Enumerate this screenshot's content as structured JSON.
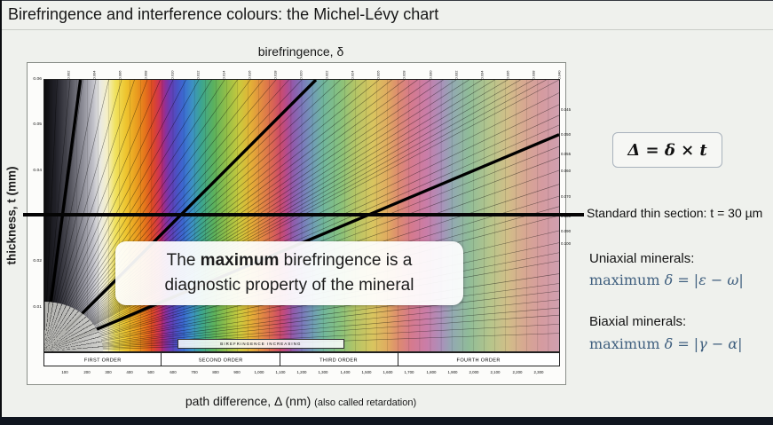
{
  "slide": {
    "title": "Birefringence and interference colours: the Michel-Lévy chart"
  },
  "chart_data": {
    "type": "heatmap",
    "title": "Michel-Lévy interference colour chart",
    "top_axis_label": "birefringence, δ",
    "left_axis_label": "thickness, t (mm)",
    "bottom_axis_label": "path difference, Δ (nm)",
    "bottom_axis_note": "(also called retardation)",
    "xlim_nm": [
      0,
      2400
    ],
    "ylim_mm": [
      0,
      0.06
    ],
    "y_ticks": [
      "0.06",
      "0.05",
      "0.04",
      "0.03",
      "0.02",
      "0.01"
    ],
    "x_ticks": [
      "100",
      "200",
      "300",
      "400",
      "500",
      "600",
      "700",
      "800",
      "900",
      "1,000",
      "1,100",
      "1,200",
      "1,300",
      "1,400",
      "1,500",
      "1,600",
      "1,700",
      "1,800",
      "1,900",
      "2,000",
      "2,100",
      "2,200",
      "2,300"
    ],
    "top_ticks": [
      "0.002",
      "0.004",
      "0.006",
      "0.008",
      "0.010",
      "0.012",
      "0.014",
      "0.016",
      "0.018",
      "0.020",
      "0.022",
      "0.024",
      "0.026",
      "0.028",
      "0.030",
      "0.032",
      "0.034",
      "0.036",
      "0.038",
      "0.040"
    ],
    "right_ticks": [
      "0.045",
      "0.050",
      "0.055",
      "0.060",
      "0.070",
      "0.080",
      "0.090",
      "0.100"
    ],
    "order_labels": [
      "FIRST ORDER",
      "SECOND ORDER",
      "THIRD ORDER",
      "FOURTH ORDER"
    ],
    "order_bounds_nm": [
      0,
      550,
      1100,
      1650,
      2400
    ],
    "increasing_label": "BIREFRINGENCE  INCREASING",
    "fan_lines_top": [
      0.001,
      0.002,
      0.003,
      0.004,
      0.005,
      0.006,
      0.007,
      0.008,
      0.009,
      0.01,
      0.011,
      0.012,
      0.013,
      0.014,
      0.015,
      0.016,
      0.017,
      0.018,
      0.019,
      0.02,
      0.021,
      0.022,
      0.023,
      0.024,
      0.025,
      0.026,
      0.027,
      0.028,
      0.029,
      0.03,
      0.031,
      0.032,
      0.033,
      0.034,
      0.035,
      0.036,
      0.037,
      0.038,
      0.039,
      0.04
    ],
    "fan_lines_right": [
      0.042,
      0.044,
      0.046,
      0.048,
      0.05,
      0.053,
      0.056,
      0.06,
      0.065,
      0.07,
      0.075,
      0.08,
      0.09,
      0.1,
      0.11,
      0.12,
      0.14,
      0.16,
      0.18,
      0.21,
      0.25,
      0.3,
      0.4,
      0.6
    ],
    "example_birefringence_lines": [
      0.0028,
      0.0211,
      0.0501
    ],
    "thin_section": {
      "label": "Standard thin section: t = 30 µm",
      "t_mm": 0.03
    },
    "color_stops": [
      [
        "0",
        "#0b0b0d"
      ],
      [
        "2.5",
        "#26262e"
      ],
      [
        "5",
        "#53535c"
      ],
      [
        "7.5",
        "#8e8e98"
      ],
      [
        "9.6",
        "#c3c3cb"
      ],
      [
        "10.8",
        "#e9e9e3"
      ],
      [
        "12.1",
        "#f4efc9"
      ],
      [
        "13.8",
        "#f0e25e"
      ],
      [
        "15.8",
        "#eec52f"
      ],
      [
        "17.9",
        "#ea9d1f"
      ],
      [
        "19.6",
        "#e5731c"
      ],
      [
        "21",
        "#dd4b26"
      ],
      [
        "22.3",
        "#cd3454"
      ],
      [
        "22.9",
        "#b02c78"
      ],
      [
        "23.5",
        "#8e3098"
      ],
      [
        "24.4",
        "#6a3cb4"
      ],
      [
        "25.8",
        "#4a52c4"
      ],
      [
        "27.1",
        "#3b6cd2"
      ],
      [
        "28.8",
        "#3d92c2"
      ],
      [
        "30.4",
        "#3ba492"
      ],
      [
        "32.9",
        "#5bb15d"
      ],
      [
        "35.4",
        "#93bf48"
      ],
      [
        "37.9",
        "#cbc93d"
      ],
      [
        "40",
        "#e3b236"
      ],
      [
        "42.1",
        "#e28c41"
      ],
      [
        "44.2",
        "#da6752"
      ],
      [
        "45.8",
        "#cc4c6a"
      ],
      [
        "47.1",
        "#b54c8e"
      ],
      [
        "48.3",
        "#915aaa"
      ],
      [
        "50",
        "#7c76ba"
      ],
      [
        "52.1",
        "#719cb6"
      ],
      [
        "54.2",
        "#71b69c"
      ],
      [
        "57.5",
        "#88c17c"
      ],
      [
        "60.4",
        "#b4c566"
      ],
      [
        "63.8",
        "#d9c55f"
      ],
      [
        "66.7",
        "#e0aa60"
      ],
      [
        "68.8",
        "#dd8b70"
      ],
      [
        "71.3",
        "#d57a8e"
      ],
      [
        "74.2",
        "#ca7da8"
      ],
      [
        "77.1",
        "#aa90ba"
      ],
      [
        "79.2",
        "#93a9b2"
      ],
      [
        "82.5",
        "#90bc98"
      ],
      [
        "86.7",
        "#b7c58b"
      ],
      [
        "90",
        "#d1be88"
      ],
      [
        "93.3",
        "#d7a791"
      ],
      [
        "96.7",
        "#d59ba0"
      ],
      [
        "100",
        "#d0a0b0"
      ]
    ]
  },
  "callout": {
    "pre": "The ",
    "bold": "maximum",
    "post": " birefringence is a",
    "line2": "diagnostic property of the mineral"
  },
  "right_panel": {
    "formula": "Δ = δ × t",
    "uniaxial_title": "Uniaxial minerals:",
    "uniaxial_pre": "maximum ",
    "uniaxial_math": "δ = |ε − ω|",
    "biaxial_title": "Biaxial minerals:",
    "biaxial_pre": "maximum ",
    "biaxial_math": "δ = |γ − α|"
  }
}
